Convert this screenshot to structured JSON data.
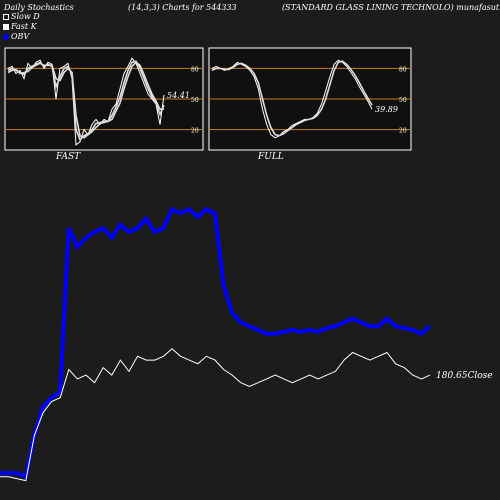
{
  "header": {
    "title_left": "Daily Stochastics",
    "title_mid": "(14,3,3) Charts for 544333",
    "title_right": "(STANDARD GLASS LINING TECHNOLO) munafasutra.in"
  },
  "legend": {
    "items": [
      {
        "label": "Slow  D",
        "swatch": "dark"
      },
      {
        "label": "Fast K",
        "swatch": "white"
      },
      {
        "label": "OBV",
        "swatch": "blue"
      }
    ]
  },
  "colors": {
    "background": "#1c1c1c",
    "panel_bg": "#101010",
    "grid_orange": "#c87a1a",
    "obv": "#0000ff",
    "price": "#ffffff"
  },
  "chart_data": [
    {
      "name": "FAST",
      "type": "line",
      "label": "FAST",
      "ylim": [
        0,
        100
      ],
      "levels": [
        20,
        50,
        80
      ],
      "tick_labels": [
        "80",
        "50",
        "20"
      ],
      "value_label": "54.41",
      "series": [
        {
          "values": [
            80,
            82,
            75,
            78,
            70,
            85,
            80,
            86,
            88,
            80,
            86,
            84,
            50,
            80,
            82,
            85,
            70,
            5,
            8,
            20,
            15,
            25,
            30,
            25,
            30,
            28,
            40,
            45,
            60,
            75,
            82,
            90,
            85,
            75,
            65,
            55,
            50,
            45,
            25,
            54
          ]
        },
        {
          "values": [
            78,
            80,
            78,
            76,
            74,
            80,
            82,
            84,
            86,
            82,
            84,
            82,
            62,
            72,
            80,
            82,
            74,
            20,
            10,
            14,
            16,
            20,
            26,
            27,
            28,
            28,
            34,
            42,
            52,
            66,
            78,
            86,
            87,
            80,
            70,
            60,
            52,
            46,
            35,
            44
          ]
        },
        {
          "values": [
            76,
            78,
            79,
            75,
            76,
            77,
            81,
            83,
            85,
            83,
            83,
            83,
            70,
            68,
            76,
            80,
            76,
            34,
            14,
            12,
            15,
            18,
            22,
            26,
            27,
            28,
            30,
            38,
            46,
            60,
            72,
            82,
            86,
            83,
            74,
            64,
            55,
            48,
            40,
            40
          ]
        }
      ]
    },
    {
      "name": "FULL",
      "type": "line",
      "label": "FULL",
      "ylim": [
        0,
        100
      ],
      "levels": [
        20,
        50,
        80
      ],
      "tick_labels": [
        "80",
        "50",
        "20"
      ],
      "value_label": "39.89",
      "series": [
        {
          "values": [
            80,
            82,
            80,
            78,
            80,
            82,
            86,
            84,
            82,
            78,
            72,
            60,
            40,
            25,
            15,
            12,
            14,
            18,
            20,
            24,
            26,
            28,
            30,
            30,
            32,
            36,
            45,
            58,
            72,
            84,
            88,
            86,
            82,
            76,
            70,
            62,
            55,
            48,
            40
          ]
        },
        {
          "values": [
            78,
            80,
            80,
            79,
            79,
            81,
            84,
            85,
            83,
            80,
            75,
            66,
            50,
            34,
            22,
            15,
            14,
            16,
            19,
            22,
            25,
            27,
            29,
            30,
            31,
            34,
            40,
            50,
            64,
            78,
            86,
            87,
            84,
            79,
            73,
            66,
            58,
            51,
            44
          ]
        }
      ]
    },
    {
      "name": "OBV",
      "type": "line",
      "close_label": "180.65Close",
      "series": [
        {
          "name": "OBV",
          "values": [
            20,
            20,
            20,
            18,
            40,
            55,
            60,
            63,
            150,
            140,
            145,
            148,
            150,
            145,
            152,
            148,
            150,
            155,
            148,
            150,
            160,
            158,
            160,
            156,
            160,
            158,
            120,
            105,
            100,
            98,
            96,
            94,
            94,
            95,
            96,
            95,
            96,
            95,
            97,
            98,
            100,
            102,
            100,
            98,
            98,
            102,
            98,
            97,
            96,
            94,
            98
          ]
        },
        {
          "name": "Price",
          "values": [
            18,
            18,
            17,
            16,
            40,
            52,
            58,
            60,
            75,
            70,
            72,
            68,
            76,
            72,
            80,
            74,
            82,
            80,
            80,
            82,
            86,
            82,
            80,
            78,
            82,
            80,
            75,
            72,
            68,
            66,
            68,
            70,
            72,
            70,
            68,
            70,
            72,
            70,
            72,
            74,
            80,
            84,
            82,
            80,
            82,
            84,
            78,
            76,
            72,
            70,
            72
          ]
        }
      ]
    }
  ]
}
